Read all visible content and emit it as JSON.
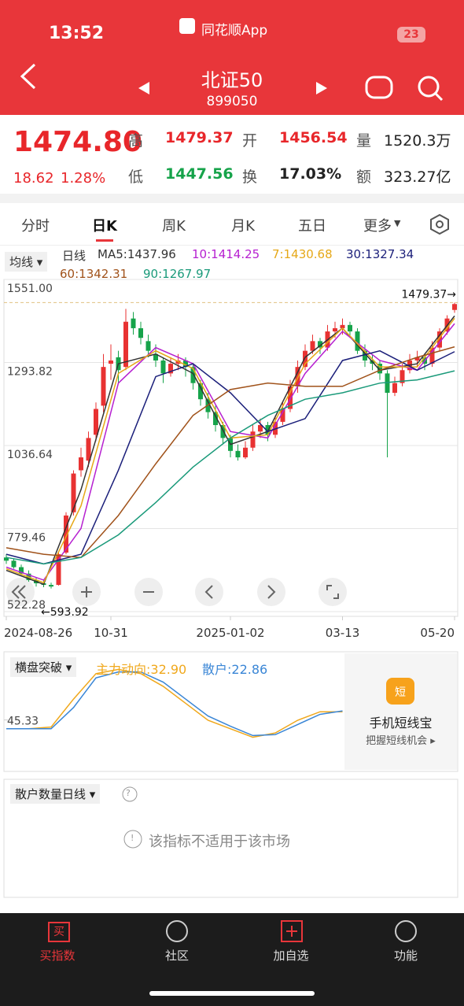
{
  "status": {
    "time": "13:52",
    "app": "同花顺App",
    "battery": "23"
  },
  "header": {
    "title": "北证50",
    "code": "899050"
  },
  "quote": {
    "price": "1474.80",
    "change": "18.62",
    "change_pct": "1.28%",
    "items": [
      {
        "label": "高",
        "value": "1479.37"
      },
      {
        "label": "开",
        "value": "1456.54"
      },
      {
        "label": "量",
        "value": "1520.3万"
      },
      {
        "label": "低",
        "value": "1447.56"
      },
      {
        "label": "换",
        "value": "17.03%"
      },
      {
        "label": "额",
        "value": "323.27亿"
      }
    ]
  },
  "tabs": [
    "分时",
    "日K",
    "周K",
    "月K",
    "五日",
    "更多"
  ],
  "legend": {
    "selector": "均线",
    "kind": "日线"
  },
  "chart_data": [
    {
      "type": "candlestick",
      "ylim": [
        522.28,
        1551
      ],
      "yticks": [
        {
          "value": 1551,
          "label": "1551.00"
        },
        {
          "value": 1293.82,
          "label": "1293.82"
        },
        {
          "value": 1036.64,
          "label": "1036.64"
        },
        {
          "value": 779.46,
          "label": "779.46"
        },
        {
          "value": 522.28,
          "label": "522.28"
        }
      ],
      "xticks": [
        {
          "value": 0,
          "label": "2024-08-26"
        },
        {
          "value": 14,
          "label": "10-31"
        },
        {
          "value": 30,
          "label": "2025-01-02"
        },
        {
          "value": 45,
          "label": "03-13"
        },
        {
          "value": 60,
          "label": "05-20"
        }
      ],
      "candles": [
        [
          690,
          700,
          670,
          680
        ],
        [
          680,
          685,
          655,
          660
        ],
        [
          660,
          668,
          635,
          640
        ],
        [
          640,
          650,
          615,
          620
        ],
        [
          620,
          628,
          600,
          610
        ],
        [
          610,
          622,
          598,
          605
        ],
        [
          605,
          612,
          593.92,
          600
        ],
        [
          605,
          710,
          603,
          700
        ],
        [
          705,
          830,
          700,
          820
        ],
        [
          830,
          960,
          820,
          950
        ],
        [
          960,
          1030,
          940,
          1000
        ],
        [
          990,
          1080,
          970,
          1060
        ],
        [
          1070,
          1170,
          1050,
          1150
        ],
        [
          1160,
          1320,
          1140,
          1280
        ],
        [
          1290,
          1350,
          1240,
          1300
        ],
        [
          1310,
          1330,
          1230,
          1270
        ],
        [
          1280,
          1460,
          1270,
          1420
        ],
        [
          1430,
          1450,
          1380,
          1400
        ],
        [
          1400,
          1420,
          1350,
          1370
        ],
        [
          1360,
          1380,
          1310,
          1330
        ],
        [
          1320,
          1350,
          1280,
          1300
        ],
        [
          1300,
          1310,
          1230,
          1260
        ],
        [
          1260,
          1310,
          1250,
          1290
        ],
        [
          1290,
          1320,
          1270,
          1300
        ],
        [
          1300,
          1310,
          1250,
          1280
        ],
        [
          1280,
          1290,
          1210,
          1230
        ],
        [
          1230,
          1240,
          1160,
          1180
        ],
        [
          1180,
          1200,
          1120,
          1140
        ],
        [
          1140,
          1160,
          1080,
          1100
        ],
        [
          1100,
          1110,
          1040,
          1060
        ],
        [
          1060,
          1070,
          1000,
          1020
        ],
        [
          1020,
          1040,
          990,
          1000
        ],
        [
          1000,
          1050,
          995,
          1030
        ],
        [
          1030,
          1100,
          1020,
          1080
        ],
        [
          1080,
          1120,
          1060,
          1100
        ],
        [
          1100,
          1110,
          1050,
          1070
        ],
        [
          1070,
          1130,
          1060,
          1110
        ],
        [
          1110,
          1170,
          1100,
          1150
        ],
        [
          1150,
          1240,
          1140,
          1220
        ],
        [
          1220,
          1300,
          1200,
          1280
        ],
        [
          1280,
          1350,
          1270,
          1330
        ],
        [
          1330,
          1380,
          1320,
          1360
        ],
        [
          1360,
          1370,
          1320,
          1340
        ],
        [
          1340,
          1410,
          1330,
          1390
        ],
        [
          1390,
          1420,
          1370,
          1400
        ],
        [
          1400,
          1430,
          1380,
          1410
        ],
        [
          1410,
          1420,
          1370,
          1390
        ],
        [
          1390,
          1400,
          1320,
          1330
        ],
        [
          1330,
          1350,
          1280,
          1300
        ],
        [
          1300,
          1320,
          1270,
          1290
        ],
        [
          1290,
          1300,
          1240,
          1260
        ],
        [
          1260,
          1270,
          1000,
          1200
        ],
        [
          1200,
          1250,
          1190,
          1230
        ],
        [
          1230,
          1290,
          1220,
          1270
        ],
        [
          1270,
          1320,
          1260,
          1300
        ],
        [
          1300,
          1330,
          1280,
          1310
        ],
        [
          1310,
          1320,
          1270,
          1290
        ],
        [
          1290,
          1360,
          1280,
          1340
        ],
        [
          1340,
          1400,
          1330,
          1390
        ],
        [
          1390,
          1440,
          1380,
          1430
        ],
        [
          1456.54,
          1479.37,
          1447.56,
          1474.8
        ]
      ],
      "up_color": "#e83232",
      "down_color": "#16a34a",
      "ma_index": [
        0,
        5,
        10,
        15,
        20,
        25,
        30,
        35,
        40,
        45,
        50,
        55,
        60
      ],
      "series": [
        {
          "name": "MA5",
          "value_label": "1437.96",
          "color": "#333333",
          "values": [
            650,
            607,
            900,
            1290,
            1320,
            1260,
            1040,
            1080,
            1310,
            1400,
            1270,
            1290,
            1437.96
          ]
        },
        {
          "name": "10",
          "value_label": "1414.25",
          "color": "#b620d0",
          "values": [
            660,
            620,
            780,
            1230,
            1340,
            1290,
            1080,
            1060,
            1260,
            1390,
            1300,
            1270,
            1414.25
          ]
        },
        {
          "name": "7",
          "value_label": "1430.68",
          "color": "#e6a817",
          "values": [
            655,
            612,
            850,
            1260,
            1330,
            1275,
            1060,
            1070,
            1290,
            1400,
            1280,
            1280,
            1430.68
          ]
        },
        {
          "name": "30",
          "value_label": "1327.34",
          "color": "#1b1f7a",
          "values": [
            700,
            670,
            700,
            960,
            1250,
            1290,
            1200,
            1080,
            1120,
            1300,
            1330,
            1270,
            1327.34
          ]
        },
        {
          "name": "60",
          "value_label": "1342.31",
          "color": "#a0521a",
          "values": [
            720,
            700,
            690,
            820,
            980,
            1130,
            1210,
            1230,
            1220,
            1220,
            1270,
            1310,
            1342.31
          ]
        },
        {
          "name": "90",
          "value_label": "1267.97",
          "color": "#1a9a7a",
          "values": [
            690,
            670,
            690,
            760,
            860,
            970,
            1060,
            1130,
            1180,
            1200,
            1230,
            1240,
            1267.97
          ]
        }
      ],
      "annotations": [
        {
          "value": 1479.37,
          "label": "1479.37→"
        },
        {
          "value": 593.92,
          "label": "←593.92"
        }
      ]
    },
    {
      "type": "line",
      "title": "横盘突破",
      "ylim": [
        -20,
        110
      ],
      "yticks": [
        {
          "value": 45.33,
          "label": "45.33"
        }
      ],
      "x": [
        0,
        3,
        6,
        9,
        12,
        15,
        18,
        21,
        24,
        27,
        30,
        33,
        36,
        39,
        42,
        45
      ],
      "series": [
        {
          "name": "主力动向",
          "value_label": "32.90",
          "color": "#f0a81c",
          "values": [
            35,
            35,
            37,
            70,
            100,
            105,
            100,
            85,
            65,
            45,
            35,
            25,
            30,
            45,
            55,
            55
          ]
        },
        {
          "name": "散户",
          "value_label": "22.86",
          "color": "#3a86d6",
          "values": [
            35,
            35,
            35,
            60,
            95,
            102,
            102,
            90,
            70,
            50,
            38,
            27,
            28,
            40,
            52,
            56
          ]
        }
      ]
    }
  ],
  "ad": {
    "icon": "短",
    "title": "手机短线宝",
    "subtitle": "把握短线机会 ▸"
  },
  "panel2": {
    "title": "散户数量日线",
    "help": "?",
    "message": "该指标不适用于该市场"
  },
  "nav": [
    "买指数",
    "社区",
    "加自选",
    "功能"
  ],
  "nav_icon": "买"
}
